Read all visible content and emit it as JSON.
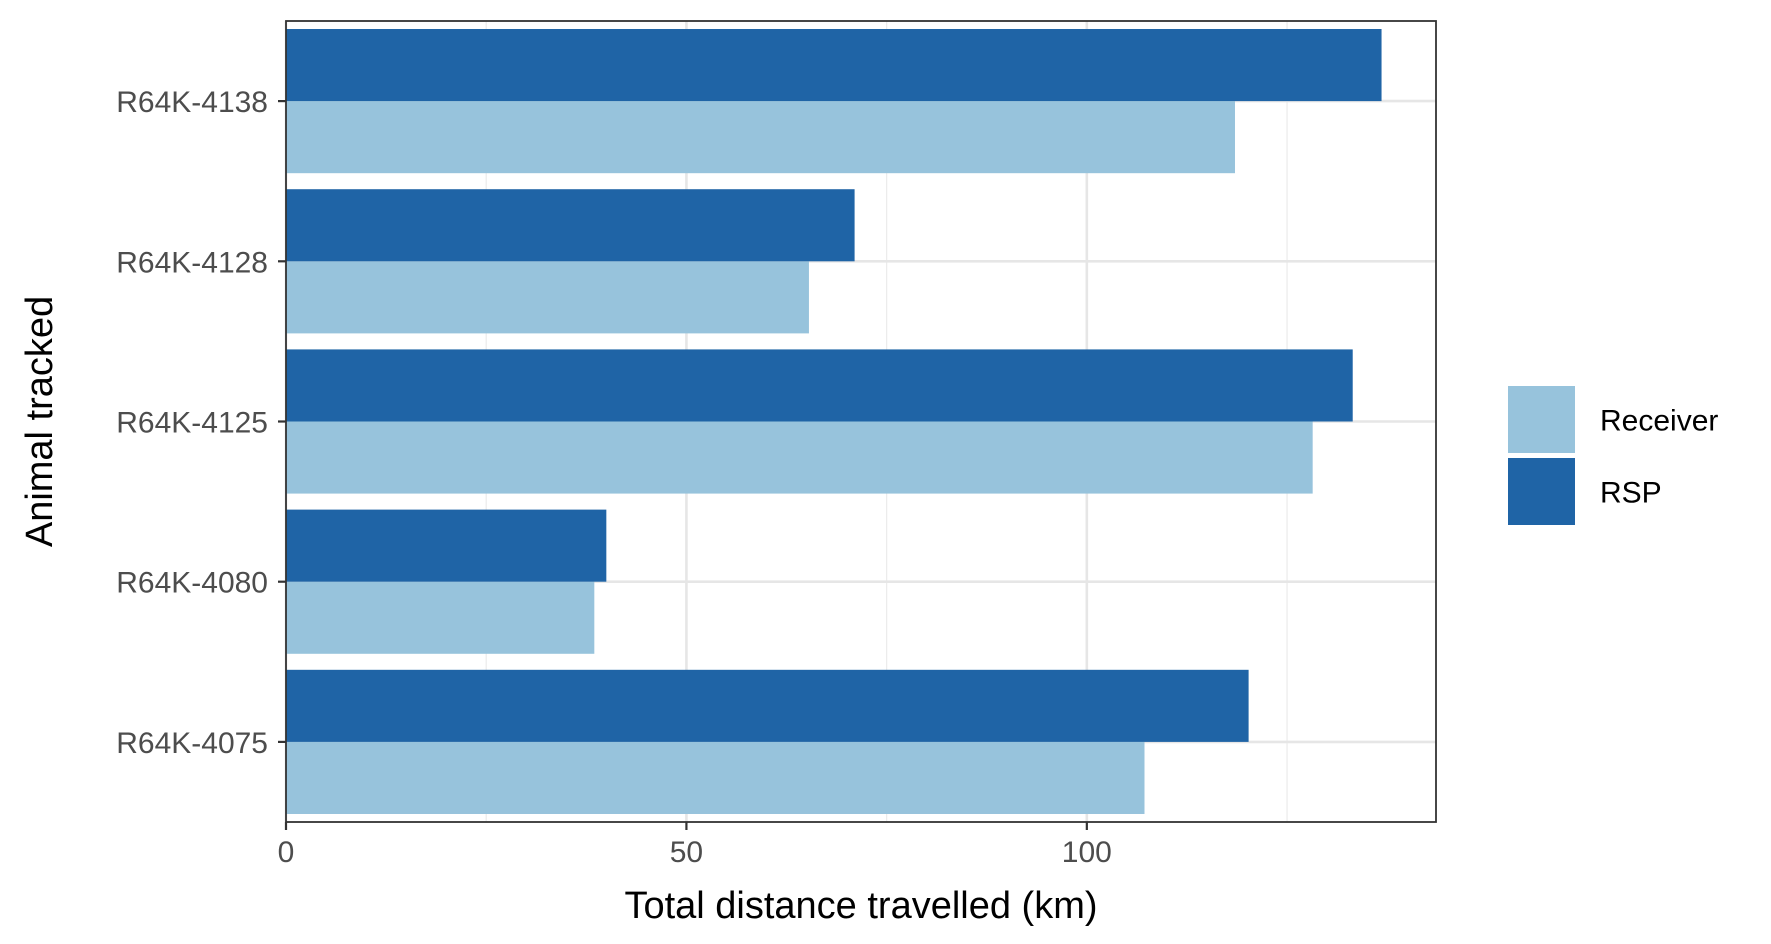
{
  "chart_data": {
    "type": "bar",
    "orientation": "horizontal",
    "title": "",
    "xlabel": "Total distance travelled (km)",
    "ylabel": "Animal tracked",
    "categories": [
      "R64K-4075",
      "R64K-4080",
      "R64K-4125",
      "R64K-4128",
      "R64K-4138"
    ],
    "series": [
      {
        "name": "Receiver",
        "color": "#97c3dc",
        "values": [
          107.2,
          38.5,
          128.2,
          65.3,
          118.5
        ]
      },
      {
        "name": "RSP",
        "color": "#1f64a6",
        "values": [
          120.2,
          40.0,
          133.2,
          71.0,
          136.8
        ]
      }
    ],
    "xlim": [
      0,
      143.6
    ],
    "xticks": [
      0,
      50,
      100
    ],
    "grid": true,
    "legend_position": "right"
  }
}
